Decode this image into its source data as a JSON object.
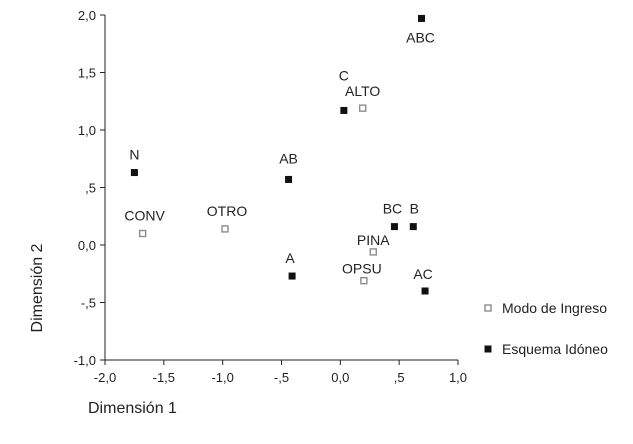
{
  "chart_data": {
    "type": "scatter",
    "title": "",
    "xlabel": "Dimensión 1",
    "ylabel": "Dimensión 2",
    "xlim": [
      -2.0,
      1.0
    ],
    "ylim": [
      -1.0,
      2.0
    ],
    "x_ticks": [
      -2.0,
      -1.5,
      -1.0,
      -0.5,
      0.0,
      0.5,
      1.0
    ],
    "x_tick_labels": [
      "-2,0",
      "-1,5",
      "-1,0",
      "-,5",
      "0,0",
      ",5",
      "1,0"
    ],
    "y_ticks": [
      -1.0,
      -0.5,
      0.0,
      0.5,
      1.0,
      1.5,
      2.0
    ],
    "y_tick_labels": [
      "-1,0",
      "-,5",
      "0,0",
      ",5",
      "1,0",
      "1,5",
      "2,0"
    ],
    "grid": false,
    "legend_position": "right",
    "series": [
      {
        "name": "Modo de Ingreso",
        "marker": "hollow-square",
        "color": "#8c8c8c",
        "points": [
          {
            "label": "CONV",
            "x": -1.68,
            "y": 0.1
          },
          {
            "label": "OTRO",
            "x": -0.98,
            "y": 0.14
          },
          {
            "label": "ALTO",
            "x": 0.19,
            "y": 1.19
          },
          {
            "label": "PINA",
            "x": 0.28,
            "y": -0.06
          },
          {
            "label": "OPSU",
            "x": 0.2,
            "y": -0.31
          }
        ]
      },
      {
        "name": "Esquema Idóneo",
        "marker": "filled-square",
        "color": "#111111",
        "points": [
          {
            "label": "N",
            "x": -1.75,
            "y": 0.63
          },
          {
            "label": "AB",
            "x": -0.44,
            "y": 0.57
          },
          {
            "label": "A",
            "x": -0.41,
            "y": -0.27
          },
          {
            "label": "C",
            "x": 0.03,
            "y": 1.17
          },
          {
            "label": "ABC",
            "x": 0.69,
            "y": 1.97
          },
          {
            "label": "BC",
            "x": 0.46,
            "y": 0.16
          },
          {
            "label": "B",
            "x": 0.62,
            "y": 0.16
          },
          {
            "label": "AC",
            "x": 0.72,
            "y": -0.4
          }
        ]
      }
    ]
  }
}
